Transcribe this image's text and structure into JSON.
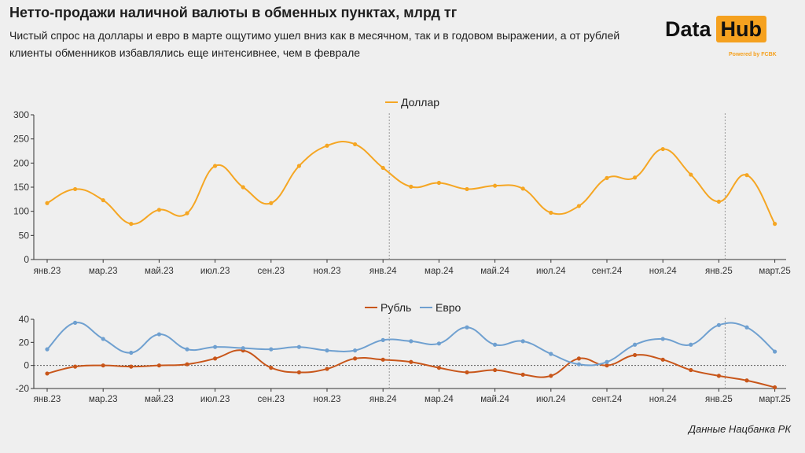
{
  "header": {
    "title": "Нетто-продажи наличной валюты в обменных пунктах, млрд тг",
    "subtitle": "Чистый спрос на доллары и евро в марте ощутимо ушел вниз как в месячном, так и в годовом выражении, а от рублей клиенты обменников избавлялись еще интенсивнее, чем в феврале"
  },
  "logo": {
    "part1": "Data",
    "part2": "Hub",
    "tagline": "Powered by FCBK"
  },
  "source": "Данные Нацбанка РК",
  "colors": {
    "dollar": "#f5a623",
    "ruble": "#c8561a",
    "euro": "#6fa0d0",
    "accent": "#f5a11f"
  },
  "chart_data": [
    {
      "type": "line",
      "categories": [
        "янв.23",
        "фев.23",
        "мар.23",
        "апр.23",
        "май.23",
        "июн.23",
        "июл.23",
        "авг.23",
        "сен.23",
        "окт.23",
        "ноя.23",
        "дек.23",
        "янв.24",
        "фев.24",
        "мар.24",
        "апр.24",
        "май.24",
        "июн.24",
        "июл.24",
        "авг.24",
        "сент.24",
        "окт.24",
        "ноя.24",
        "дек.24",
        "янв.25",
        "фев.25",
        "март.25"
      ],
      "tick_labels": [
        "янв.23",
        "мар.23",
        "май.23",
        "июл.23",
        "сен.23",
        "ноя.23",
        "янв.24",
        "мар.24",
        "май.24",
        "июл.24",
        "сент.24",
        "ноя.24",
        "янв.25",
        "март.25"
      ],
      "series": [
        {
          "name": "Доллар",
          "values": [
            117,
            146,
            123,
            74,
            103,
            96,
            194,
            150,
            117,
            194,
            236,
            239,
            190,
            151,
            159,
            146,
            153,
            147,
            97,
            111,
            169,
            170,
            229,
            176,
            120,
            175,
            74
          ]
        }
      ],
      "ylim": [
        0,
        300
      ],
      "yticks": [
        0,
        50,
        100,
        150,
        200,
        250,
        300
      ],
      "legend": "top-center",
      "year_dividers": [
        "янв.24",
        "янв.25"
      ]
    },
    {
      "type": "line",
      "categories": [
        "янв.23",
        "фев.23",
        "мар.23",
        "апр.23",
        "май.23",
        "июн.23",
        "июл.23",
        "авг.23",
        "сен.23",
        "окт.23",
        "ноя.23",
        "дек.23",
        "янв.24",
        "фев.24",
        "мар.24",
        "апр.24",
        "май.24",
        "июн.24",
        "июл.24",
        "авг.24",
        "сент.24",
        "окт.24",
        "ноя.24",
        "дек.24",
        "янв.25",
        "фев.25",
        "март.25"
      ],
      "tick_labels": [
        "янв.23",
        "мар.23",
        "май.23",
        "июл.23",
        "сен.23",
        "ноя.23",
        "янв.24",
        "мар.24",
        "май.24",
        "июл.24",
        "сент.24",
        "ноя.24",
        "янв.25",
        "март.25"
      ],
      "series": [
        {
          "name": "Рубль",
          "values": [
            -7,
            -1,
            0,
            -1,
            0,
            1,
            6,
            13,
            -2,
            -6,
            -3,
            6,
            5,
            3,
            -2,
            -6,
            -4,
            -8,
            -9,
            6,
            0,
            9,
            5,
            -4,
            -9,
            -13,
            -19
          ]
        },
        {
          "name": "Евро",
          "values": [
            14,
            37,
            23,
            11,
            27,
            14,
            16,
            15,
            14,
            16,
            13,
            13,
            22,
            21,
            19,
            33,
            18,
            21,
            10,
            1,
            3,
            18,
            23,
            18,
            35,
            33,
            12
          ]
        }
      ],
      "ylim": [
        -20,
        40
      ],
      "yticks": [
        -20,
        0,
        20,
        40
      ],
      "legend": "top-center",
      "year_dividers": [
        "янв.24",
        "янв.25"
      ]
    }
  ]
}
